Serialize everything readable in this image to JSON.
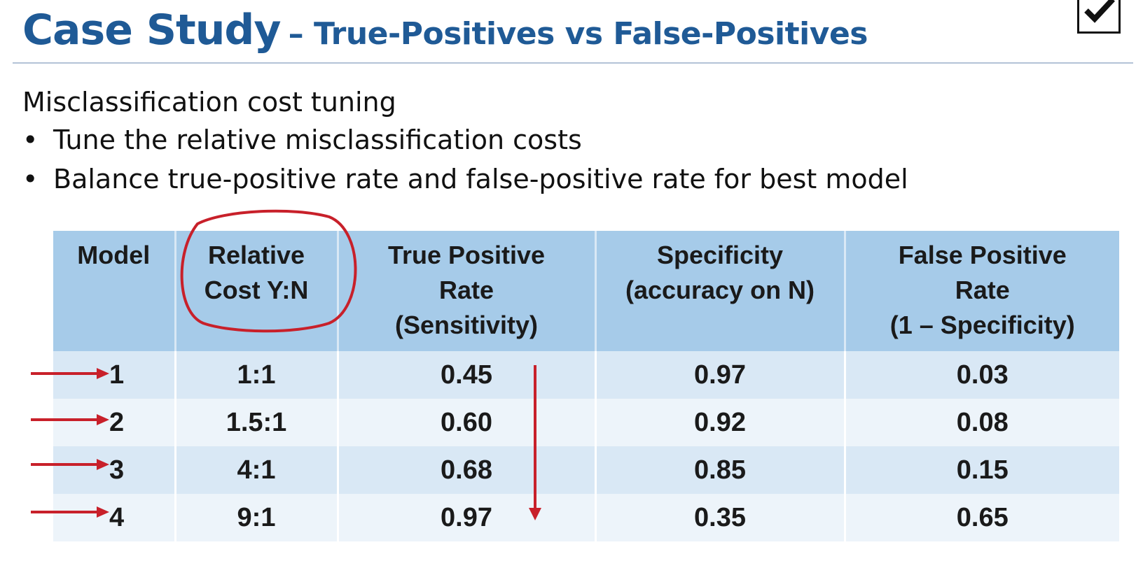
{
  "slide": {
    "title": "Case Study",
    "subtitle": "– True-Positives vs False-Positives",
    "intro": "Misclassification cost tuning",
    "bullet_char": "•",
    "bullets": [
      {
        "text": "Tune the relative misclassification costs"
      },
      {
        "text": "Balance true-positive rate and false-positive rate for best model"
      }
    ]
  },
  "table": {
    "headers": [
      {
        "text": "Model"
      },
      {
        "text": "Relative\nCost Y:N"
      },
      {
        "text": "True Positive\nRate\n(Sensitivity)"
      },
      {
        "text": "Specificity\n(accuracy on N)"
      },
      {
        "text": "False Positive\nRate\n(1 – Specificity)"
      }
    ],
    "rows": [
      {
        "model": "1",
        "cost": "1:1",
        "tpr": "0.45",
        "spec": "0.97",
        "fpr": "0.03"
      },
      {
        "model": "2",
        "cost": "1.5:1",
        "tpr": "0.60",
        "spec": "0.92",
        "fpr": "0.08"
      },
      {
        "model": "3",
        "cost": "4:1",
        "tpr": "0.68",
        "spec": "0.85",
        "fpr": "0.15"
      },
      {
        "model": "4",
        "cost": "9:1",
        "tpr": "0.97",
        "spec": "0.35",
        "fpr": "0.65"
      }
    ]
  },
  "annotations": {
    "pen_color": "#c8202a",
    "circled_column": "Relative Cost Y:N",
    "arrow_icon": "right-arrow-icon",
    "down_arrow_icon": "down-arrow-icon"
  },
  "colors": {
    "title": "#1f5a96",
    "header_bg": "#a6cbe9",
    "row_dark": "#d9e8f5",
    "row_light": "#edf4fa"
  }
}
